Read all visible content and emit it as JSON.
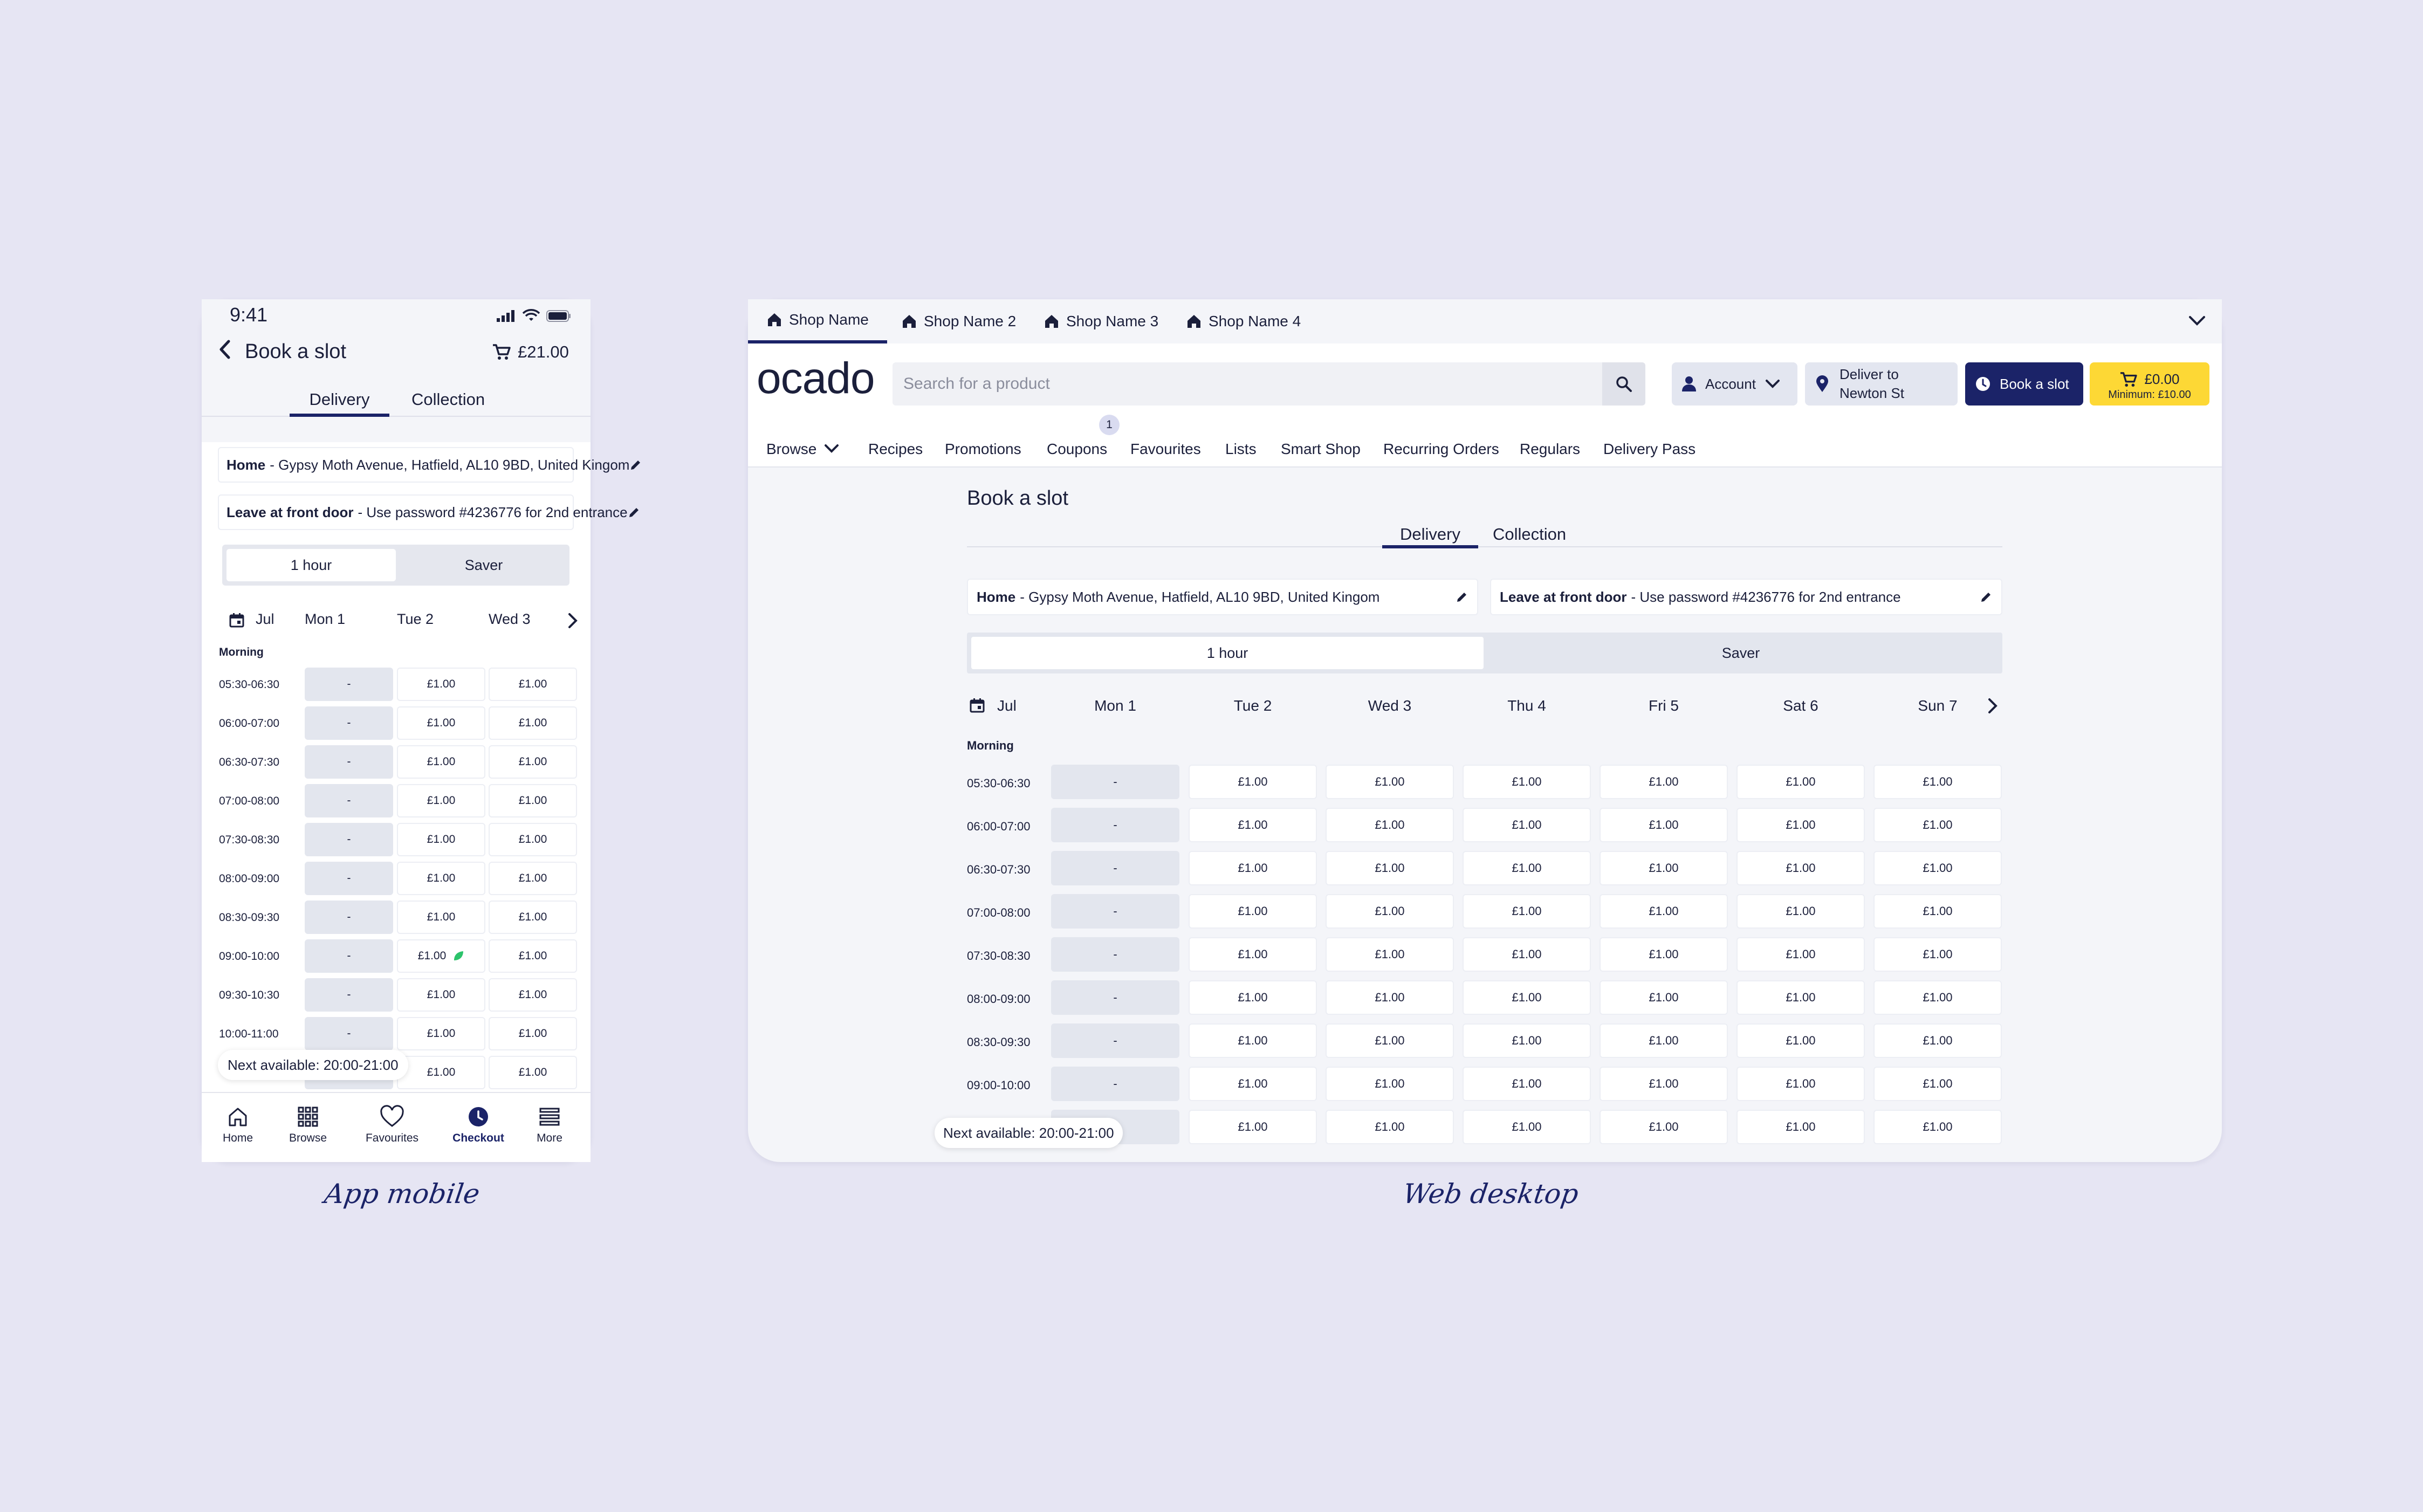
{
  "mobile": {
    "status": {
      "time": "9:41"
    },
    "header": {
      "title": "Book a slot",
      "cart_total": "£21.00"
    },
    "tabs": [
      {
        "label": "Delivery"
      },
      {
        "label": "Collection"
      }
    ],
    "address": {
      "label": "Home",
      "text": "- Gypsy Moth Avenue, Hatfield, AL10 9BD, United Kingom"
    },
    "instructions": {
      "label": "Leave at front door",
      "text": "- Use password #4236776 for 2nd entrance"
    },
    "segment": {
      "on": "1 hour",
      "off": "Saver"
    },
    "date_row": {
      "month": "Jul",
      "days": [
        "Mon 1",
        "Tue 2",
        "Wed 3"
      ]
    },
    "morning_label": "Morning",
    "rows": [
      {
        "time": "05:30-06:30",
        "cells": [
          "-",
          "£1.00",
          "£1.00"
        ]
      },
      {
        "time": "06:00-07:00",
        "cells": [
          "-",
          "£1.00",
          "£1.00"
        ]
      },
      {
        "time": "06:30-07:30",
        "cells": [
          "-",
          "£1.00",
          "£1.00"
        ]
      },
      {
        "time": "07:00-08:00",
        "cells": [
          "-",
          "£1.00",
          "£1.00"
        ]
      },
      {
        "time": "07:30-08:30",
        "cells": [
          "-",
          "£1.00",
          "£1.00"
        ]
      },
      {
        "time": "08:00-09:00",
        "cells": [
          "-",
          "£1.00",
          "£1.00"
        ]
      },
      {
        "time": "08:30-09:30",
        "cells": [
          "-",
          "£1.00",
          "£1.00"
        ]
      },
      {
        "time": "09:00-10:00",
        "cells": [
          "-",
          "£1.00",
          "£1.00"
        ]
      },
      {
        "time": "09:30-10:30",
        "cells": [
          "-",
          "£1.00",
          "£1.00"
        ]
      },
      {
        "time": "10:00-11:00",
        "cells": [
          "-",
          "£1.00",
          "£1.00"
        ]
      },
      {
        "time": "",
        "cells": [
          "",
          "£1.00",
          "£1.00"
        ]
      }
    ],
    "next_available": "Next available: 20:00-21:00",
    "nav": [
      {
        "label": "Home",
        "icon": "home-icon"
      },
      {
        "label": "Browse",
        "icon": "grid-icon"
      },
      {
        "label": "Favourites",
        "icon": "heart-icon"
      },
      {
        "label": "Checkout",
        "icon": "clock-icon",
        "active": true
      },
      {
        "label": "More",
        "icon": "menu-icon"
      }
    ],
    "caption": "App mobile"
  },
  "desktop": {
    "shop_tabs": [
      {
        "label": "Shop Name"
      },
      {
        "label": "Shop Name 2"
      },
      {
        "label": "Shop Name 3"
      },
      {
        "label": "Shop Name 4"
      }
    ],
    "logo": "ocado",
    "search": {
      "placeholder": "Search for a product"
    },
    "account": "Account",
    "deliver_to": {
      "line1": "Deliver to",
      "line2": "Newton St"
    },
    "book_slot": "Book a slot",
    "basket": {
      "total": "£0.00",
      "minimum": "Minimum: £10.00"
    },
    "menu": [
      "Browse",
      "Recipes",
      "Promotions",
      "Coupons",
      "Favourites",
      "Lists",
      "Smart Shop",
      "Recurring Orders",
      "Regulars",
      "Delivery Pass"
    ],
    "coupons_badge": "1",
    "title": "Book a slot",
    "tabs": [
      {
        "label": "Delivery"
      },
      {
        "label": "Collection"
      }
    ],
    "address": {
      "label": "Home",
      "text": "- Gypsy Moth Avenue, Hatfield, AL10 9BD, United Kingom"
    },
    "instructions": {
      "label": "Leave at front door",
      "text": "- Use password #4236776 for 2nd entrance"
    },
    "segment": {
      "on": "1 hour",
      "off": "Saver"
    },
    "date_row": {
      "month": "Jul",
      "days": [
        "Mon 1",
        "Tue 2",
        "Wed 3",
        "Thu 4",
        "Fri 5",
        "Sat 6",
        "Sun 7"
      ]
    },
    "morning_label": "Morning",
    "rows": [
      {
        "time": "05:30-06:30",
        "cells": [
          "-",
          "£1.00",
          "£1.00",
          "£1.00",
          "£1.00",
          "£1.00",
          "£1.00"
        ]
      },
      {
        "time": "06:00-07:00",
        "cells": [
          "-",
          "£1.00",
          "£1.00",
          "£1.00",
          "£1.00",
          "£1.00",
          "£1.00"
        ]
      },
      {
        "time": "06:30-07:30",
        "cells": [
          "-",
          "£1.00",
          "£1.00",
          "£1.00",
          "£1.00",
          "£1.00",
          "£1.00"
        ]
      },
      {
        "time": "07:00-08:00",
        "cells": [
          "-",
          "£1.00",
          "£1.00",
          "£1.00",
          "£1.00",
          "£1.00",
          "£1.00"
        ]
      },
      {
        "time": "07:30-08:30",
        "cells": [
          "-",
          "£1.00",
          "£1.00",
          "£1.00",
          "£1.00",
          "£1.00",
          "£1.00"
        ]
      },
      {
        "time": "08:00-09:00",
        "cells": [
          "-",
          "£1.00",
          "£1.00",
          "£1.00",
          "£1.00",
          "£1.00",
          "£1.00"
        ]
      },
      {
        "time": "08:30-09:30",
        "cells": [
          "-",
          "£1.00",
          "£1.00",
          "£1.00",
          "£1.00",
          "£1.00",
          "£1.00"
        ]
      },
      {
        "time": "09:00-10:00",
        "cells": [
          "-",
          "£1.00",
          "£1.00",
          "£1.00",
          "£1.00",
          "£1.00",
          "£1.00"
        ]
      },
      {
        "time": "",
        "cells": [
          "",
          "£1.00",
          "£1.00",
          "£1.00",
          "£1.00",
          "£1.00",
          "£1.00"
        ]
      }
    ],
    "next_available": "Next available: 20:00-21:00",
    "caption": "Web desktop"
  },
  "colors": {
    "navy": "#1b2368",
    "yellow": "#fdd835",
    "eco_green": "#2cc36b",
    "background": "#e6e5f3"
  }
}
